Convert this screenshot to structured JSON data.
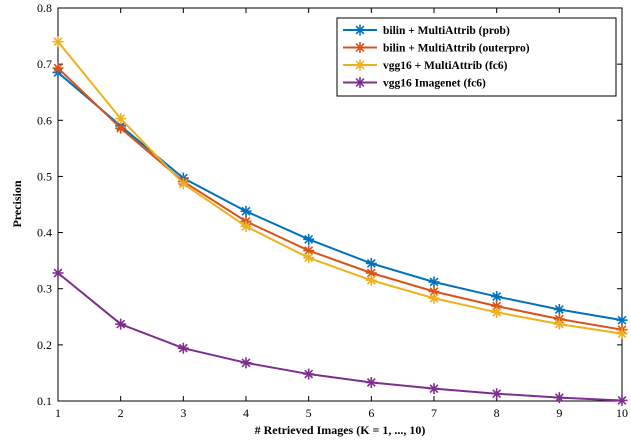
{
  "chart_data": {
    "type": "line",
    "title": "",
    "xlabel": "# Retrieved Images (K = 1, ..., 10)",
    "ylabel": "Precision",
    "x": [
      1,
      2,
      3,
      4,
      5,
      6,
      7,
      8,
      9,
      10
    ],
    "xlim": [
      1,
      10
    ],
    "ylim": [
      0.1,
      0.8
    ],
    "xticks": [
      "1",
      "2",
      "3",
      "4",
      "5",
      "6",
      "7",
      "8",
      "9",
      "10"
    ],
    "yticks": [
      "0.1",
      "0.2",
      "0.3",
      "0.4",
      "0.5",
      "0.6",
      "0.7",
      "0.8"
    ],
    "grid": false,
    "legend_position": "top-right",
    "marker": "asterisk",
    "series": [
      {
        "name": "bilin + MultiAttrib (prob)",
        "color": "#0072BD",
        "values": [
          0.685,
          0.59,
          0.497,
          0.438,
          0.388,
          0.345,
          0.312,
          0.286,
          0.263,
          0.244
        ]
      },
      {
        "name": "bilin + MultiAttrib (outerpro)",
        "color": "#D95319",
        "values": [
          0.693,
          0.586,
          0.491,
          0.42,
          0.368,
          0.328,
          0.295,
          0.269,
          0.246,
          0.227
        ]
      },
      {
        "name": "vgg16 + MultiAttrib (fc6)",
        "color": "#EDB120",
        "values": [
          0.74,
          0.603,
          0.487,
          0.411,
          0.355,
          0.315,
          0.283,
          0.258,
          0.237,
          0.22
        ]
      },
      {
        "name": "vgg16 Imagenet (fc6)",
        "color": "#7E2F8E",
        "values": [
          0.328,
          0.237,
          0.194,
          0.168,
          0.148,
          0.133,
          0.122,
          0.113,
          0.106,
          0.101
        ]
      }
    ]
  }
}
